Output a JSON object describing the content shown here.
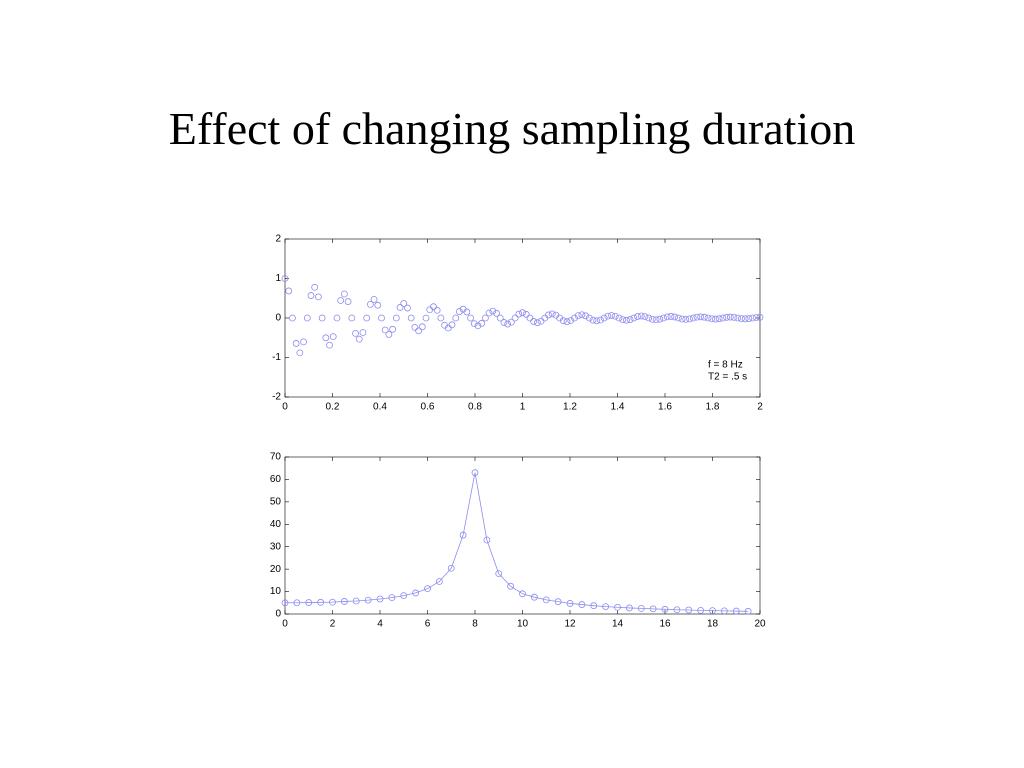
{
  "title": "Effect of changing sampling duration",
  "chart_data": [
    {
      "type": "scatter",
      "color": "#8c8cf0",
      "x": [
        0,
        0.0156,
        0.0313,
        0.0469,
        0.0625,
        0.0781,
        0.0938,
        0.1094,
        0.125,
        0.1406,
        0.1563,
        0.1719,
        0.1875,
        0.2031,
        0.2188,
        0.2344,
        0.25,
        0.2656,
        0.2813,
        0.2969,
        0.3125,
        0.3281,
        0.3438,
        0.3594,
        0.375,
        0.3906,
        0.4063,
        0.4219,
        0.4375,
        0.4531,
        0.4688,
        0.4844,
        0.5,
        0.5156,
        0.5313,
        0.5469,
        0.5625,
        0.5781,
        0.5938,
        0.6094,
        0.625,
        0.6406,
        0.6563,
        0.6719,
        0.6875,
        0.7031,
        0.7188,
        0.7344,
        0.75,
        0.7656,
        0.7813,
        0.7969,
        0.8125,
        0.8281,
        0.8438,
        0.8594,
        0.875,
        0.8906,
        0.9063,
        0.9219,
        0.9375,
        0.9531,
        0.9688,
        0.9844,
        1,
        1.0156,
        1.0313,
        1.0469,
        1.0625,
        1.0781,
        1.0938,
        1.1094,
        1.125,
        1.1406,
        1.1563,
        1.1719,
        1.1875,
        1.2031,
        1.2188,
        1.2344,
        1.25,
        1.2656,
        1.2813,
        1.2969,
        1.3125,
        1.3281,
        1.3438,
        1.3594,
        1.375,
        1.3906,
        1.4063,
        1.4219,
        1.4375,
        1.4531,
        1.4688,
        1.4844,
        1.5,
        1.5156,
        1.5313,
        1.5469,
        1.5625,
        1.5781,
        1.5938,
        1.6094,
        1.625,
        1.6406,
        1.6563,
        1.6719,
        1.6875,
        1.7031,
        1.7188,
        1.7344,
        1.75,
        1.7656,
        1.7813,
        1.7969,
        1.8125,
        1.8281,
        1.8438,
        1.8594,
        1.875,
        1.8906,
        1.9063,
        1.9219,
        1.9375,
        1.9531,
        1.9688,
        1.9844,
        2
      ],
      "values": [
        1,
        0.685,
        0,
        -0.644,
        -0.883,
        -0.605,
        0,
        0.568,
        0.779,
        0.534,
        0,
        -0.501,
        -0.687,
        -0.471,
        0,
        0.443,
        0.607,
        0.416,
        0,
        -0.39,
        -0.535,
        -0.367,
        0,
        0.345,
        0.472,
        0.324,
        0,
        -0.304,
        -0.417,
        -0.286,
        0,
        0.268,
        0.368,
        0.252,
        0,
        -0.237,
        -0.325,
        -0.223,
        0,
        0.209,
        0.287,
        0.196,
        0,
        -0.184,
        -0.253,
        -0.173,
        0,
        0.163,
        0.223,
        0.153,
        0,
        -0.143,
        -0.197,
        -0.135,
        0,
        0.127,
        0.174,
        0.119,
        0,
        -0.112,
        -0.153,
        -0.105,
        0,
        0.099,
        0.135,
        0.093,
        0,
        -0.087,
        -0.119,
        -0.082,
        0,
        0.077,
        0.105,
        0.072,
        0,
        -0.068,
        -0.093,
        -0.064,
        0,
        0.06,
        0.082,
        0.056,
        0,
        -0.053,
        -0.072,
        -0.05,
        0,
        0.047,
        0.064,
        0.044,
        0,
        -0.041,
        -0.056,
        -0.039,
        0,
        0.036,
        0.05,
        0.034,
        0,
        -0.032,
        -0.044,
        -0.03,
        0,
        0.028,
        0.039,
        0.027,
        0,
        -0.025,
        -0.034,
        -0.023,
        0,
        0.022,
        0.03,
        0.021,
        0,
        -0.019,
        -0.027,
        -0.018,
        0,
        0.017,
        0.024,
        0.016,
        0,
        -0.015,
        -0.021,
        -0.014,
        0,
        0.013,
        0.018
      ],
      "xlim": [
        0,
        2
      ],
      "ylim": [
        -2,
        2
      ],
      "xticks": [
        0,
        0.2,
        0.4,
        0.6,
        0.8,
        1,
        1.2,
        1.4,
        1.6,
        1.8,
        2
      ],
      "yticks": [
        -2,
        -1,
        0,
        1,
        2
      ],
      "annotations": [
        "f = 8 Hz",
        "T2 = .5 s"
      ]
    },
    {
      "type": "line",
      "color": "#8c8cf0",
      "x": [
        0,
        0.5,
        1,
        1.5,
        2,
        2.5,
        3,
        3.5,
        4,
        4.5,
        5,
        5.5,
        6,
        6.5,
        7,
        7.5,
        8,
        8.5,
        9,
        9.5,
        10,
        10.5,
        11,
        11.5,
        12,
        12.5,
        13,
        13.5,
        14,
        14.5,
        15,
        15.5,
        16,
        16.5,
        17,
        17.5,
        18,
        18.5,
        19,
        19.5
      ],
      "values": [
        5.0,
        5.0,
        5.1,
        5.2,
        5.3,
        5.6,
        5.8,
        6.2,
        6.7,
        7.3,
        8.2,
        9.4,
        11.3,
        14.5,
        20.4,
        35.2,
        63,
        33,
        18,
        12.4,
        9,
        7.5,
        6.3,
        5.5,
        4.7,
        4.2,
        3.7,
        3.3,
        3.0,
        2.7,
        2.5,
        2.3,
        2.1,
        1.9,
        1.8,
        1.6,
        1.5,
        1.4,
        1.3,
        1.2
      ],
      "xlim": [
        0,
        20
      ],
      "ylim": [
        0,
        70
      ],
      "xticks": [
        0,
        2,
        4,
        6,
        8,
        10,
        12,
        14,
        16,
        18,
        20
      ],
      "yticks": [
        0,
        10,
        20,
        30,
        40,
        50,
        60,
        70
      ]
    }
  ]
}
